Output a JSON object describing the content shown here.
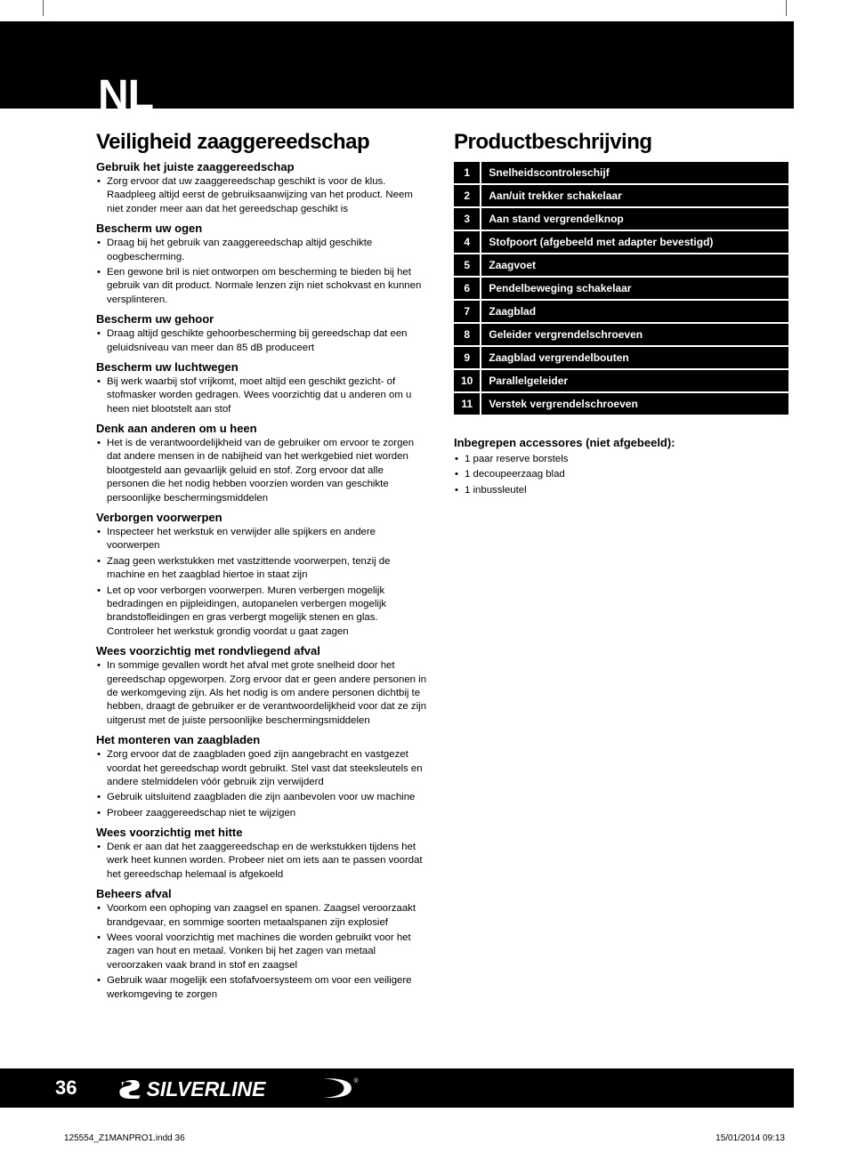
{
  "lang_code": "NL",
  "page_number": "36",
  "file_info": "125554_Z1MANPRO1.indd   36",
  "timestamp": "15/01/2014   09:13",
  "brand_name": "SILVERLINE",
  "left": {
    "title": "Veiligheid zaaggereedschap",
    "sections": [
      {
        "heading": "Gebruik het juiste zaaggereedschap",
        "items": [
          "Zorg ervoor dat uw zaaggereedschap geschikt is voor de klus. Raadpleeg altijd eerst de gebruiksaanwijzing van het product. Neem niet zonder meer aan dat het gereedschap geschikt is"
        ]
      },
      {
        "heading": "Bescherm uw ogen",
        "items": [
          "Draag bij het gebruik van zaaggereedschap altijd geschikte oogbescherming.",
          "Een gewone bril is niet ontworpen om bescherming te bieden bij het gebruik van dit product. Normale lenzen zijn niet schokvast en kunnen versplinteren."
        ]
      },
      {
        "heading": "Bescherm uw gehoor",
        "items": [
          "Draag altijd geschikte gehoorbescherming bij gereedschap dat een geluidsniveau van meer dan 85 dB produceert"
        ]
      },
      {
        "heading": "Bescherm uw luchtwegen",
        "items": [
          "Bij werk waarbij stof vrijkomt, moet altijd een geschikt gezicht- of stofmasker worden gedragen. Wees voorzichtig dat u anderen om u heen niet blootstelt aan stof"
        ]
      },
      {
        "heading": "Denk aan anderen om u heen",
        "items": [
          "Het is de verantwoordelijkheid van de gebruiker om ervoor te zorgen dat andere mensen in de nabijheid van het werkgebied niet worden blootgesteld aan gevaarlijk geluid en stof. Zorg ervoor dat alle personen die het nodig hebben voorzien worden van geschikte persoonlijke beschermingsmiddelen"
        ]
      },
      {
        "heading": "Verborgen voorwerpen",
        "items": [
          "Inspecteer het werkstuk en verwijder alle spijkers en andere voorwerpen",
          "Zaag geen werkstukken met vastzittende voorwerpen, tenzij de machine en het zaagblad hiertoe in staat zijn",
          "Let op voor verborgen voorwerpen. Muren verbergen mogelijk bedradingen en pijpleidingen, autopanelen verbergen mogelijk brandstofleidingen en gras verbergt mogelijk stenen en glas. Controleer het werkstuk grondig voordat u gaat zagen"
        ]
      },
      {
        "heading": "Wees voorzichtig met rondvliegend afval",
        "items": [
          "In sommige gevallen wordt het afval met grote snelheid door het gereedschap opgeworpen. Zorg ervoor dat er geen andere personen in de werkomgeving zijn. Als het nodig is om andere personen dichtbij te hebben, draagt de gebruiker er de verantwoordelijkheid voor dat ze zijn uitgerust met de juiste persoonlijke beschermingsmiddelen"
        ]
      },
      {
        "heading": "Het monteren van zaagbladen",
        "items": [
          "Zorg ervoor dat de zaagbladen goed zijn aangebracht en vastgezet voordat het gereedschap wordt gebruikt. Stel vast dat steeksleutels en andere stelmiddelen vóór gebruik zijn verwijderd",
          "Gebruik uitsluitend zaagbladen die zijn aanbevolen voor uw machine",
          "Probeer zaaggereedschap niet te wijzigen"
        ]
      },
      {
        "heading": "Wees voorzichtig met hitte",
        "items": [
          "Denk er aan dat het zaaggereedschap en de werkstukken tijdens het werk heet kunnen worden. Probeer niet om iets aan te passen voordat het gereedschap helemaal is afgekoeld"
        ]
      },
      {
        "heading": "Beheers afval",
        "items": [
          "Voorkom een ophoping van zaagsel en spanen. Zaagsel veroorzaakt brandgevaar, en sommige soorten metaalspanen zijn explosief",
          "Wees vooral voorzichtig met machines die worden gebruikt voor het zagen van hout en metaal. Vonken bij het zagen van metaal veroorzaken vaak brand in stof en zaagsel",
          "Gebruik waar mogelijk een stofafvoersysteem om voor een veiligere werkomgeving te zorgen"
        ]
      }
    ]
  },
  "right": {
    "title": "Productbeschrijving",
    "parts": [
      {
        "n": "1",
        "label": "Snelheidscontroleschijf"
      },
      {
        "n": "2",
        "label": "Aan/uit trekker schakelaar"
      },
      {
        "n": "3",
        "label": "Aan stand vergrendelknop"
      },
      {
        "n": "4",
        "label": "Stofpoort (afgebeeld met adapter bevestigd)"
      },
      {
        "n": "5",
        "label": "Zaagvoet"
      },
      {
        "n": "6",
        "label": "Pendelbeweging schakelaar"
      },
      {
        "n": "7",
        "label": "Zaagblad"
      },
      {
        "n": "8",
        "label": "Geleider vergrendelschroeven"
      },
      {
        "n": "9",
        "label": "Zaagblad vergrendelbouten"
      },
      {
        "n": "10",
        "label": "Parallelgeleider"
      },
      {
        "n": "11",
        "label": "Verstek vergrendelschroeven"
      }
    ],
    "accessories_title": "Inbegrepen accessores (niet afgebeeld):",
    "accessories": [
      "1 paar reserve borstels",
      "1 decoupeerzaag blad",
      "1 inbussleutel"
    ]
  }
}
